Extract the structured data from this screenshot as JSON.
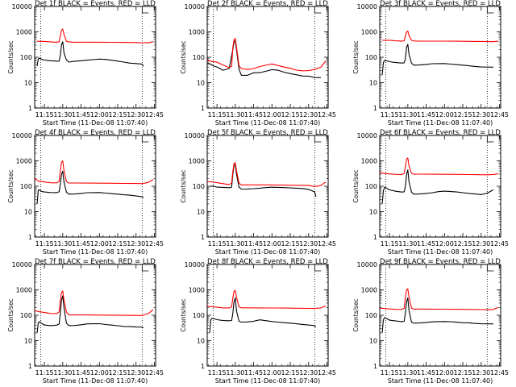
{
  "chart_data": {
    "type": "line",
    "panel_count": 9,
    "shared": {
      "xlabel": "Start Time (11-Dec-08 11:07:40)",
      "ylabel": "Counts/sec",
      "x_tick_labels": [
        "11:15",
        "11:30",
        "11:45",
        "12:00",
        "12:15",
        "12:30",
        "12:45"
      ],
      "x_tick_minutes": [
        15,
        30,
        45,
        60,
        75,
        90,
        105
      ],
      "xlim_minutes": [
        7,
        106
      ],
      "y_scale": "log",
      "ylim": [
        1,
        10000
      ],
      "y_tick_labels": [
        "1",
        "10",
        "100",
        "1000",
        "10000"
      ],
      "y_tick_values": [
        1,
        10,
        100,
        1000,
        10000
      ],
      "vertical_dotted_lines_minutes": [
        12,
        95
      ],
      "colors": {
        "events": "#000000",
        "lld": "#ff0000"
      }
    },
    "panels": [
      {
        "title": "Det 1f BLACK = Events, RED = LLD",
        "series": [
          {
            "color": "#000000",
            "x": [
              9,
              10,
              11,
              13,
              15,
              18,
              20,
              25,
              27,
              28,
              29,
              30,
              31,
              33,
              35,
              40,
              45,
              50,
              55,
              60,
              65,
              70,
              75,
              80,
              85,
              90,
              95,
              96
            ],
            "values": [
              45,
              85,
              90,
              80,
              75,
              72,
              72,
              70,
              70,
              120,
              320,
              420,
              150,
              80,
              65,
              70,
              72,
              75,
              78,
              82,
              80,
              75,
              70,
              65,
              60,
              58,
              55,
              45
            ]
          },
          {
            "color": "#ff0000",
            "x": [
              9,
              15,
              20,
              25,
              27,
              28,
              29,
              30,
              31,
              33,
              35,
              40,
              50,
              60,
              70,
              80,
              90,
              95,
              100,
              104
            ],
            "values": [
              420,
              420,
              410,
              400,
              420,
              700,
              1200,
              1300,
              800,
              420,
              390,
              380,
              380,
              380,
              380,
              380,
              380,
              380,
              380,
              420
            ]
          }
        ]
      },
      {
        "title": "Det 2f BLACK = Events, RED = LLD",
        "series": [
          {
            "color": "#000000",
            "x": [
              7,
              9,
              12,
              15,
              20,
              25,
              28,
              29,
              30,
              31,
              33,
              35,
              40,
              45,
              50,
              55,
              60,
              65,
              70,
              75,
              80,
              85,
              90,
              95,
              100
            ],
            "values": [
              60,
              55,
              45,
              40,
              30,
              35,
              200,
              400,
              450,
              200,
              35,
              20,
              20,
              25,
              25,
              28,
              32,
              30,
              25,
              22,
              20,
              18,
              18,
              16,
              16
            ]
          },
          {
            "color": "#ff0000",
            "x": [
              7,
              10,
              15,
              20,
              25,
              27,
              28,
              29,
              30,
              31,
              33,
              35,
              40,
              45,
              50,
              55,
              60,
              65,
              70,
              75,
              80,
              85,
              90,
              95,
              100,
              104
            ],
            "values": [
              75,
              70,
              65,
              50,
              40,
              45,
              250,
              500,
              550,
              250,
              45,
              35,
              32,
              35,
              42,
              48,
              55,
              48,
              42,
              38,
              32,
              30,
              30,
              33,
              40,
              70
            ]
          }
        ]
      },
      {
        "title": "Det 3f BLACK = Events, RED = LLD",
        "series": [
          {
            "color": "#000000",
            "x": [
              9,
              10,
              11,
              13,
              15,
              20,
              25,
              27,
              28,
              29,
              30,
              31,
              33,
              35,
              40,
              45,
              50,
              55,
              60,
              65,
              70,
              75,
              80,
              85,
              90,
              95,
              100
            ],
            "values": [
              20,
              60,
              75,
              70,
              65,
              60,
              58,
              60,
              90,
              250,
              330,
              130,
              60,
              50,
              50,
              52,
              55,
              55,
              55,
              52,
              50,
              48,
              46,
              44,
              42,
              42,
              42
            ]
          },
          {
            "color": "#ff0000",
            "x": [
              9,
              15,
              20,
              25,
              27,
              28,
              29,
              30,
              31,
              33,
              35,
              40,
              50,
              60,
              70,
              80,
              90,
              95,
              100,
              104
            ],
            "values": [
              460,
              470,
              450,
              440,
              460,
              700,
              1000,
              1100,
              700,
              460,
              430,
              420,
              420,
              420,
              420,
              420,
              420,
              420,
              420,
              440
            ]
          }
        ]
      },
      {
        "title": "Det 4f BLACK = Events, RED = LLD",
        "series": [
          {
            "color": "#000000",
            "x": [
              9,
              10,
              11,
              13,
              15,
              20,
              25,
              27,
              28,
              29,
              30,
              31,
              33,
              35,
              40,
              45,
              50,
              55,
              60,
              65,
              70,
              75,
              80,
              85,
              90,
              95,
              96
            ],
            "values": [
              20,
              70,
              70,
              60,
              58,
              55,
              55,
              60,
              120,
              300,
              400,
              150,
              60,
              50,
              50,
              52,
              55,
              55,
              55,
              52,
              50,
              48,
              46,
              45,
              42,
              40,
              36
            ]
          },
          {
            "color": "#ff0000",
            "x": [
              7,
              10,
              15,
              20,
              25,
              27,
              28,
              29,
              30,
              31,
              33,
              35,
              40,
              50,
              60,
              70,
              80,
              90,
              95,
              100,
              104
            ],
            "values": [
              200,
              160,
              150,
              140,
              140,
              160,
              400,
              900,
              1000,
              400,
              150,
              130,
              130,
              130,
              130,
              130,
              130,
              130,
              130,
              145,
              190
            ]
          }
        ]
      },
      {
        "title": "Det 5f BLACK = Events, RED = LLD",
        "series": [
          {
            "color": "#000000",
            "x": [
              9,
              12,
              15,
              20,
              25,
              27,
              28,
              29,
              30,
              31,
              33,
              35,
              40,
              45,
              50,
              55,
              60,
              65,
              70,
              75,
              80,
              85,
              90,
              95,
              96
            ],
            "values": [
              100,
              100,
              90,
              88,
              85,
              90,
              300,
              650,
              700,
              300,
              95,
              80,
              80,
              82,
              85,
              88,
              90,
              88,
              86,
              84,
              82,
              80,
              75,
              60,
              40
            ]
          },
          {
            "color": "#ff0000",
            "x": [
              7,
              10,
              15,
              20,
              25,
              27,
              28,
              29,
              30,
              31,
              33,
              35,
              40,
              50,
              60,
              70,
              80,
              90,
              95,
              100,
              104
            ],
            "values": [
              150,
              150,
              140,
              130,
              120,
              140,
              400,
              800,
              850,
              400,
              130,
              110,
              110,
              110,
              110,
              110,
              110,
              110,
              100,
              110,
              150
            ]
          }
        ]
      },
      {
        "title": "Det 6f BLACK = Events, RED = LLD",
        "series": [
          {
            "color": "#000000",
            "x": [
              9,
              10,
              11,
              13,
              15,
              20,
              25,
              27,
              28,
              29,
              30,
              31,
              33,
              35,
              40,
              45,
              50,
              55,
              60,
              65,
              70,
              75,
              80,
              85,
              90,
              95,
              100
            ],
            "values": [
              20,
              65,
              90,
              80,
              70,
              62,
              58,
              60,
              100,
              300,
              450,
              150,
              60,
              50,
              50,
              52,
              55,
              60,
              62,
              60,
              58,
              55,
              52,
              50,
              48,
              55,
              75
            ]
          },
          {
            "color": "#ff0000",
            "x": [
              7,
              10,
              15,
              20,
              25,
              27,
              28,
              29,
              30,
              31,
              33,
              35,
              40,
              50,
              60,
              70,
              80,
              90,
              95,
              100,
              104
            ],
            "values": [
              350,
              320,
              310,
              300,
              300,
              330,
              600,
              1200,
              1300,
              600,
              320,
              290,
              290,
              290,
              290,
              290,
              290,
              290,
              290,
              300,
              320
            ]
          }
        ]
      },
      {
        "title": "Det 7f BLACK = Events, RED = LLD",
        "series": [
          {
            "color": "#000000",
            "x": [
              9,
              10,
              11,
              13,
              15,
              20,
              25,
              27,
              28,
              29,
              30,
              31,
              33,
              35,
              40,
              45,
              50,
              55,
              60,
              65,
              70,
              75,
              80,
              85,
              90,
              95,
              96
            ],
            "values": [
              20,
              50,
              55,
              45,
              40,
              38,
              40,
              45,
              120,
              400,
              600,
              200,
              50,
              40,
              40,
              42,
              45,
              45,
              45,
              42,
              40,
              38,
              36,
              36,
              35,
              35,
              32
            ]
          },
          {
            "color": "#ff0000",
            "x": [
              7,
              10,
              15,
              20,
              25,
              27,
              28,
              29,
              30,
              31,
              33,
              35,
              40,
              50,
              60,
              70,
              80,
              90,
              95,
              100,
              104
            ],
            "values": [
              150,
              140,
              130,
              120,
              120,
              140,
              400,
              800,
              900,
              400,
              130,
              100,
              100,
              100,
              100,
              100,
              100,
              100,
              100,
              120,
              170
            ]
          }
        ]
      },
      {
        "title": "Det 8f BLACK = Events, RED = LLD",
        "series": [
          {
            "color": "#000000",
            "x": [
              9,
              10,
              11,
              13,
              15,
              20,
              25,
              27,
              28,
              29,
              30,
              31,
              33,
              35,
              40,
              45,
              50,
              55,
              60,
              65,
              70,
              75,
              80,
              85,
              90,
              95,
              96
            ],
            "values": [
              20,
              65,
              75,
              70,
              65,
              60,
              60,
              62,
              120,
              350,
              500,
              150,
              60,
              55,
              55,
              58,
              65,
              60,
              55,
              52,
              50,
              48,
              46,
              44,
              42,
              40,
              36
            ]
          },
          {
            "color": "#ff0000",
            "x": [
              7,
              10,
              15,
              20,
              25,
              27,
              28,
              29,
              30,
              31,
              33,
              35,
              40,
              50,
              60,
              70,
              80,
              90,
              95,
              100,
              104
            ],
            "values": [
              230,
              220,
              210,
              200,
              200,
              220,
              500,
              900,
              950,
              500,
              210,
              190,
              190,
              190,
              190,
              190,
              190,
              190,
              190,
              200,
              240
            ]
          }
        ]
      },
      {
        "title": "Det 9f BLACK = Events, RED = LLD",
        "series": [
          {
            "color": "#000000",
            "x": [
              9,
              10,
              11,
              13,
              15,
              20,
              25,
              27,
              28,
              29,
              30,
              31,
              33,
              35,
              40,
              45,
              50,
              55,
              60,
              65,
              70,
              75,
              80,
              85,
              90,
              95,
              100
            ],
            "values": [
              20,
              65,
              80,
              70,
              62,
              58,
              55,
              58,
              120,
              350,
              500,
              150,
              55,
              50,
              50,
              52,
              54,
              55,
              55,
              54,
              52,
              50,
              50,
              48,
              47,
              47,
              47
            ]
          },
          {
            "color": "#ff0000",
            "x": [
              7,
              10,
              15,
              20,
              25,
              27,
              28,
              29,
              30,
              31,
              33,
              35,
              40,
              50,
              60,
              70,
              80,
              90,
              95,
              100,
              104
            ],
            "values": [
              190,
              185,
              180,
              175,
              175,
              195,
              500,
              1000,
              1100,
              500,
              185,
              170,
              170,
              170,
              170,
              170,
              170,
              170,
              170,
              175,
              210
            ]
          }
        ]
      }
    ]
  }
}
